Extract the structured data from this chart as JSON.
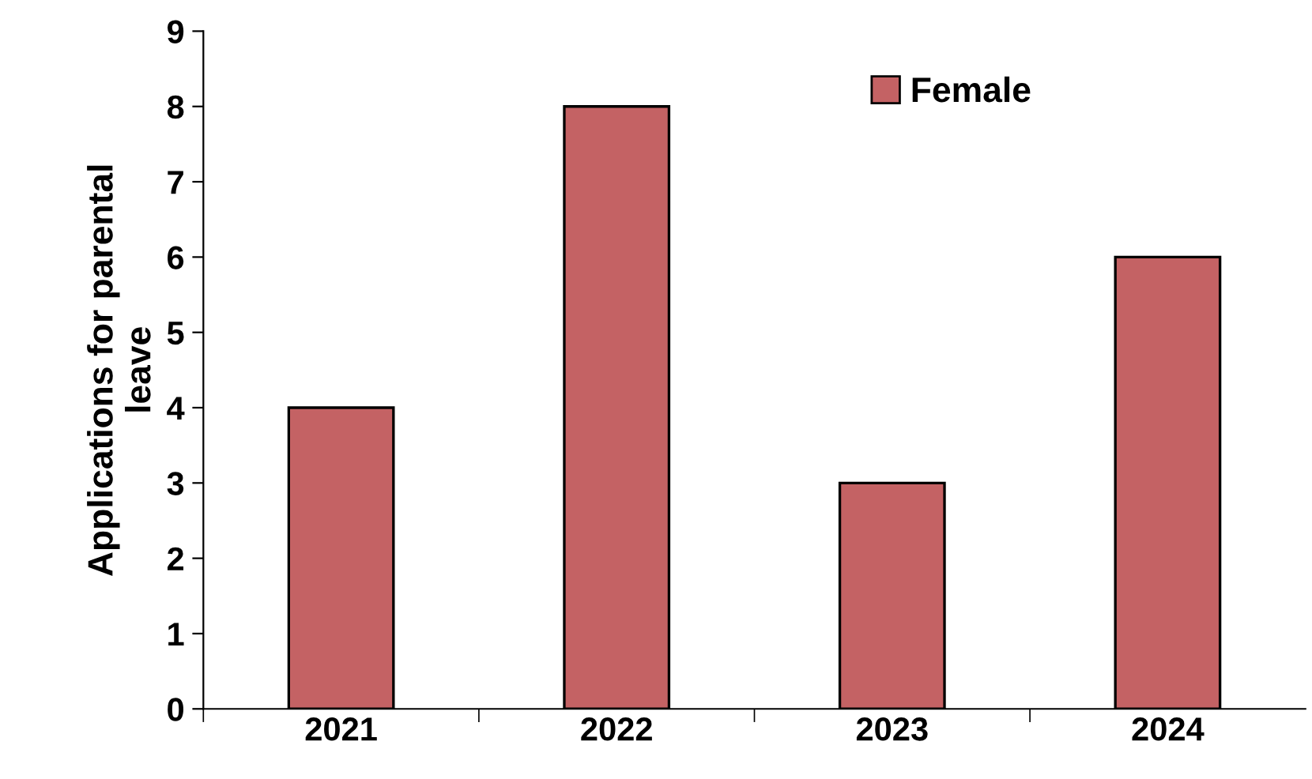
{
  "chart_data": {
    "type": "bar",
    "ylabel": "Applications for parental\nleave",
    "categories": [
      "2021",
      "2022",
      "2023",
      "2024"
    ],
    "series": [
      {
        "name": "Female",
        "color": "#c46264",
        "values": [
          4,
          8,
          3,
          6
        ]
      }
    ],
    "ylim": [
      0,
      9
    ],
    "yticks": [
      0,
      1,
      2,
      3,
      4,
      5,
      6,
      7,
      8,
      9
    ],
    "grid": false,
    "legend": "top right"
  }
}
